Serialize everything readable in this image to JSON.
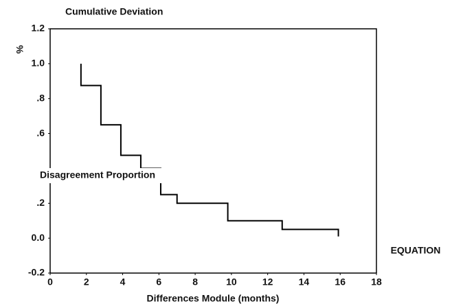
{
  "chart_data": {
    "type": "line",
    "title": "Cumulative Deviation",
    "ylabel": "%",
    "xlabel": "Differences Module (months)",
    "annotations": [
      "Disagreement Proportion",
      "EQUATION"
    ],
    "color": "#000000",
    "xlim": [
      0,
      18
    ],
    "xticks": [
      0,
      2,
      4,
      6,
      8,
      10,
      12,
      14,
      16,
      18
    ],
    "ylim": [
      -0.2,
      1.2
    ],
    "yticks": [
      -0.2,
      {
        "value": 0,
        "label": "0.0"
      },
      {
        "value": 0.2,
        "label": ".2"
      },
      {
        "value": 0.6,
        "label": ".6"
      },
      {
        "value": 0.8,
        "label": ".8"
      },
      {
        "value": 1,
        "label": "1.0"
      },
      1.2
    ],
    "x": [
      1.7,
      1.7,
      2.8,
      2.8,
      3.9,
      3.9,
      5.0,
      5.0,
      6.1,
      6.1,
      7.0,
      7.0,
      9.8,
      9.8,
      12.8,
      12.8,
      15.9,
      15.9
    ],
    "values": [
      1.0,
      0.875,
      0.875,
      0.65,
      0.65,
      0.475,
      0.475,
      0.4,
      0.4,
      0.25,
      0.25,
      0.2,
      0.2,
      0.1,
      0.1,
      0.05,
      0.05,
      0.01
    ]
  }
}
